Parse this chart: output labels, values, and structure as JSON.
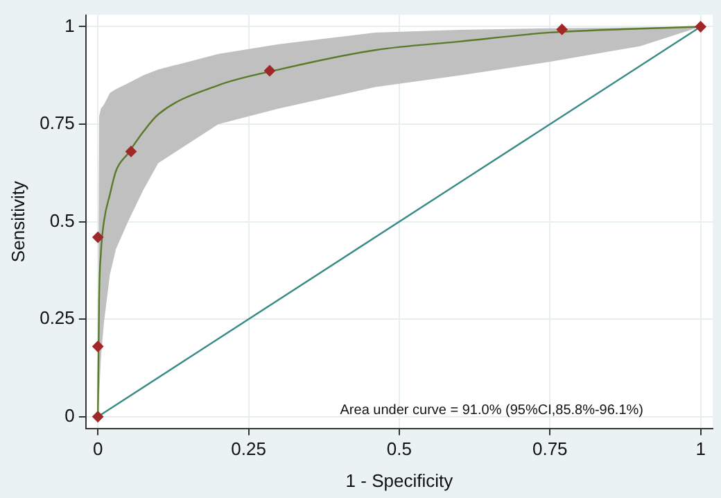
{
  "chart_data": {
    "type": "line",
    "xlabel": "1 - Specificity",
    "ylabel": "Sensitivity",
    "xlim": [
      -0.02,
      1.02
    ],
    "ylim": [
      -0.03,
      1.03
    ],
    "xticks": [
      0,
      0.25,
      0.5,
      0.75,
      1
    ],
    "yticks": [
      0,
      0.25,
      0.5,
      0.75,
      1
    ],
    "grid": true,
    "legend": false,
    "annotations": [
      "Area under curve = 91.0% (95%CI,85.8%-96.1%)"
    ],
    "series": [
      {
        "color": "#5a7a2a",
        "x": [
          0,
          0.002,
          0.005,
          0.01,
          0.02,
          0.03,
          0.05,
          0.075,
          0.1,
          0.2,
          0.3,
          0.46,
          0.6,
          0.75,
          0.9,
          1
        ],
        "values": [
          0,
          0.3,
          0.42,
          0.5,
          0.57,
          0.63,
          0.675,
          0.73,
          0.775,
          0.85,
          0.89,
          0.94,
          0.962,
          0.985,
          0.995,
          1
        ],
        "upper": [
          0,
          0.77,
          0.79,
          0.8,
          0.83,
          0.84,
          0.855,
          0.875,
          0.89,
          0.93,
          0.955,
          0.985,
          0.992,
          0.996,
          0.998,
          1
        ],
        "lower": [
          0,
          0.05,
          0.15,
          0.24,
          0.365,
          0.43,
          0.5,
          0.58,
          0.65,
          0.75,
          0.79,
          0.845,
          0.875,
          0.91,
          0.95,
          1
        ]
      },
      {
        "color": "#3a8a86",
        "x": [
          0,
          1
        ],
        "values": [
          0,
          1
        ]
      },
      {
        "type": "scatter",
        "marker": "diamond",
        "color": "#a02828",
        "x": [
          0,
          0,
          0,
          0.055,
          0.285,
          0.77,
          1
        ],
        "values": [
          0,
          0.18,
          0.46,
          0.68,
          0.887,
          0.993,
          1
        ]
      }
    ]
  }
}
